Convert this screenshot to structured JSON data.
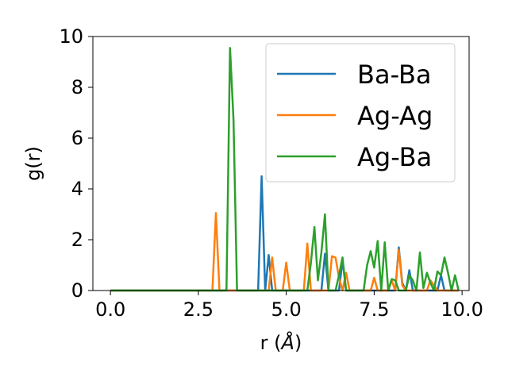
{
  "chart_data": {
    "type": "line",
    "xlabel_prefix": "r (",
    "xlabel_unit": "Å",
    "xlabel_suffix": ")",
    "ylabel": "g(r)",
    "xlim": [
      -0.5,
      10.2
    ],
    "ylim": [
      0,
      10
    ],
    "xticks": [
      0.0,
      2.5,
      5.0,
      7.5,
      10.0
    ],
    "xtick_labels": [
      "0.0",
      "2.5",
      "5.0",
      "7.5",
      "10.0"
    ],
    "yticks": [
      0,
      2,
      4,
      6,
      8,
      10
    ],
    "ytick_labels": [
      "0",
      "2",
      "4",
      "6",
      "8",
      "10"
    ],
    "grid": false,
    "legend_position": "top-right",
    "series": [
      {
        "name": "Ba-Ba",
        "color": "#1f77b4",
        "x": [
          0.0,
          4.2,
          4.3,
          4.4,
          4.5,
          4.6,
          4.7,
          6.0,
          6.1,
          6.2,
          6.3,
          6.5,
          6.6,
          6.7,
          6.8,
          8.1,
          8.2,
          8.3,
          8.4,
          8.5,
          8.6,
          9.3,
          9.4,
          9.5,
          9.9
        ],
        "y": [
          0.0,
          0.0,
          4.5,
          0.0,
          1.4,
          0.0,
          0.0,
          0.0,
          1.45,
          0.0,
          0.0,
          0.0,
          1.2,
          0.0,
          0.0,
          0.0,
          1.7,
          0.3,
          0.0,
          0.8,
          0.0,
          0.0,
          0.6,
          0.0,
          0.0
        ]
      },
      {
        "name": "Ag-Ag",
        "color": "#ff7f0e",
        "x": [
          0.0,
          2.9,
          3.0,
          3.1,
          4.5,
          4.6,
          4.7,
          4.9,
          5.0,
          5.1,
          5.5,
          5.6,
          5.7,
          6.2,
          6.3,
          6.4,
          6.5,
          6.6,
          6.7,
          6.8,
          7.4,
          7.5,
          7.6,
          7.9,
          8.0,
          8.1,
          8.2,
          8.3,
          8.4,
          9.0,
          9.1,
          9.2,
          9.3,
          9.9
        ],
        "y": [
          0.0,
          0.0,
          3.05,
          0.0,
          0.0,
          1.3,
          0.0,
          0.0,
          1.1,
          0.0,
          0.0,
          1.85,
          0.0,
          0.0,
          1.35,
          1.3,
          0.5,
          0.0,
          0.7,
          0.0,
          0.0,
          0.5,
          0.0,
          0.0,
          0.4,
          0.0,
          1.6,
          0.2,
          0.0,
          0.0,
          0.4,
          0.2,
          0.0,
          0.0
        ]
      },
      {
        "name": "Ag-Ba",
        "color": "#2ca02c",
        "x": [
          0.0,
          3.3,
          3.4,
          3.5,
          3.6,
          5.6,
          5.7,
          5.8,
          5.9,
          6.0,
          6.1,
          6.2,
          6.4,
          6.5,
          6.6,
          6.7,
          6.8,
          7.2,
          7.3,
          7.4,
          7.5,
          7.6,
          7.7,
          7.8,
          7.9,
          8.0,
          8.1,
          8.2,
          8.3,
          8.4,
          8.5,
          8.6,
          8.7,
          8.8,
          8.9,
          9.0,
          9.1,
          9.2,
          9.3,
          9.4,
          9.5,
          9.6,
          9.7,
          9.8,
          9.9
        ],
        "y": [
          0.0,
          0.0,
          9.55,
          6.7,
          0.0,
          0.0,
          1.1,
          2.5,
          0.4,
          1.5,
          3.0,
          0.0,
          0.0,
          0.6,
          1.3,
          0.0,
          0.0,
          0.0,
          1.0,
          1.55,
          0.9,
          1.95,
          0.0,
          1.9,
          0.0,
          0.45,
          0.4,
          0.0,
          0.0,
          0.0,
          0.6,
          0.4,
          0.0,
          1.5,
          0.1,
          0.7,
          0.3,
          0.0,
          0.75,
          0.6,
          1.3,
          0.7,
          0.0,
          0.6,
          0.0
        ]
      }
    ]
  }
}
